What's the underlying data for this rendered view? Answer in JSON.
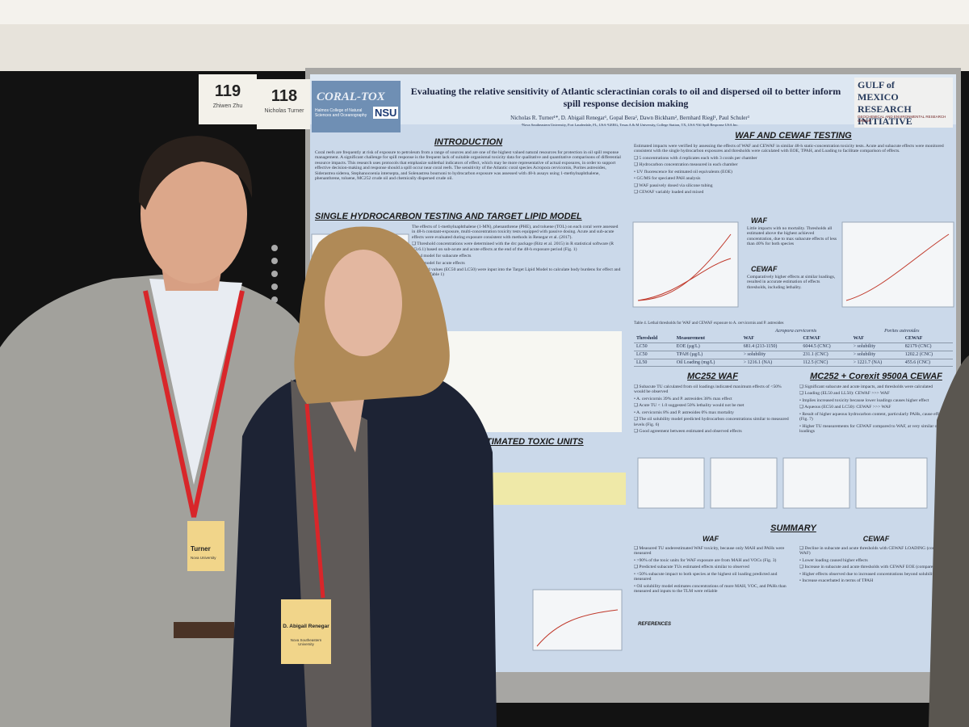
{
  "board_numbers": [
    {
      "number": "119",
      "name": "Zhiwen Zhu"
    },
    {
      "number": "118",
      "name": "Nicholas Turner"
    }
  ],
  "poster": {
    "title": "Evaluating the relative sensitivity of Atlantic scleractinian corals to oil and dispersed oil to better inform spill response decision making",
    "authors": "Nicholas R. Turner¹*, D. Abigail Renegar¹, Gopal Bera², Dawn Bickham², Bernhard Riegl¹, Paul Schuler³",
    "affiliations": "¹Nova Southeastern University, Fort Lauderdale, FL, USA   ²GERG, Texas A & M University, College Station, TX, USA   ³Oil Spill Response USA Inc.",
    "logo_left": "CORAL-TOX",
    "logo_left_sub": "NSU",
    "logo_left_caption": "Halmos College of Natural Sciences and Oceanography",
    "logo_right": "GULF of MEXICO RESEARCH INITIATIVE",
    "logo_right_sub": "GEOCHEMICAL AND ENVIRONMENTAL RESEARCH GROUP",
    "sections": [
      {
        "heading": "INTRODUCTION",
        "lines": [
          "Coral reefs are frequently at risk of exposure to petroleum from a range of sources and are one of the highest valued natural resources for protection in oil spill response management. A significant challenge for spill response is the frequent lack of suitable organismal toxicity data for qualitative and quantitative comparisons of differential resource impacts. This research uses protocols that emphasize sublethal indicators of effect, which may be more representative of actual exposures, in order to support effective decision-making and response should a spill occur near coral reefs. The sensitivity of the Atlantic coral species Acropora cervicornis, Porites astreoides, Siderastrea siderea, Stephanocoenia intersepta, and Solenastrea bournoni to hydrocarbon exposure was assessed with 48-h assays using 1-methylnaphthalene, phenanthrene, toluene, MC252 crude oil and chemically dispersed crude oil."
        ]
      },
      {
        "heading": "SINGLE HYDROCARBON TESTING AND TARGET LIPID MODEL",
        "lines": [
          "The effects of 1-methylnaphthalene (1-MN), phenanthrene (PHE), and toluene (TOL) on each coral were assessed in 48-h constant-exposure, multi-concentration toxicity tests equipped with passive dosing. Acute and sub-acute effects were evaluated during exposure consistent with methods in Renegar et al. (2017).",
          "❑ Threshold concentrations were determined with the drc package (Ritz et al. 2015) in R statistical software (R V3.6.1) based on sub-acute and acute effects at the end of the 48-h exposure period (Fig. 1)",
          "• LL4 model for subacute effects",
          "• LL2 model for acute effects",
          "Threshold values (EC50 and LC50) were input into the Target Lipid Model to calculate body burdens for effect and lethality (Table 1)"
        ]
      },
      {
        "heading": "WAF AND CEWAF TESTING",
        "lines": [
          "Estimated impacts were verified by assessing the effects of WAF and CEWAF in similar 48-h static-concentration toxicity tests. Acute and subacute effects were monitored consistent with the single hydrocarbon exposures and thresholds were calculated with EOE, TPAH, and Loading to facilitate comparison of effects.",
          "❑ 5 concentrations with 4 replicates each with 3 corals per chamber",
          "❑ Hydrocarbon concentration measured in each chamber",
          "• UV fluorescence for estimated oil equivalents (EOE)",
          "• GC/MS for speciated PAH analysis",
          "❑ WAF passively dosed via silicone tubing",
          "❑ CEWAF variably loaded and mixed"
        ]
      },
      {
        "heading": "MC252 WAF",
        "lines": [
          "❑ Subacute TU calculated from oil loadings indicated maximum effects of <50% would be observed",
          "• A. cervicornis 39% and P. astreoides 38% max effect",
          "❑ Acute TU < 1.0 suggested 50% lethality would not be met",
          "• A. cervicornis 8% and P. astreoides 0% max mortality",
          "❑ The oil solubility model predicted hydrocarbon concentrations similar to measured levels (Fig. 6)",
          "❑ Good agreement between estimated and observed effects"
        ]
      },
      {
        "heading": "MC252 + Corexit 9500A CEWAF",
        "lines": [
          "❑ Significant subacute and acute impacts, and thresholds were calculated",
          "❑ Loading (EL50 and LL50): CEWAF >>> WAF",
          "• Implies increased toxicity because lower loadings causes higher effect",
          "❑ Aqueous (EC50 and LC50): CEWAF >>> WAF",
          "• Result of higher aqueous hydrocarbon content, particularly PAHs, cause effects (Fig. 7)",
          "• Higher TU measurements for CEWAF compared to WAF, at very similar oil loadings"
        ]
      }
    ],
    "table": {
      "caption": "Table 4. Lethal thresholds for WAF and CEWAF exposure to A. cervicornis and P. astreoides",
      "species": [
        "Acropora cervicornis",
        "Porites astreoides"
      ],
      "header": [
        "Threshold",
        "Measurement",
        "WAF",
        "CEWAF",
        "WAF",
        "CEWAF"
      ],
      "rows": [
        [
          "LC50",
          "EOE (µg/L)",
          "681.4 (213-1150)",
          "6044.5 (CNC)",
          "> solubility",
          "82179 (CNC)"
        ],
        [
          "LC50",
          "TPAH (µg/L)",
          "> solubility",
          "231.1 (CNC)",
          "> solubility",
          "1202.2 (CNC)"
        ],
        [
          "LL50",
          "Oil Loading (mg/L)",
          "> 1216.1 (NA)",
          "112.5 (CNC)",
          "> 1221.7 (NA)",
          "455.6 (CNC)"
        ]
      ]
    },
    "figure_headings": [
      "WAF",
      "CEWAF"
    ],
    "figure_notes": [
      "Little impacts with no mortality. Thresholds all estimated above the highest achieved concentration, due to max subacute effects of less than 40% for both species",
      "Comparatively higher effects at similar loadings, resulted in accurate estimation of effects thresholds, including lethality."
    ],
    "toxic_units_heading": "ESTIMATED TOXIC UNITS",
    "summary": {
      "heading": "SUMMARY",
      "columns": [
        {
          "heading": "WAF",
          "lines": [
            "❑ Measured TU underestimated WAF toxicity, because only MAH and PAHs were measured",
            "• >90% of the toxic units for WAF exposure are from MAH and VOCs (Fig. 3)",
            "❑ Predicted subacute TUs estimated effects similar to observed",
            "• <50% subacute impact to both species at the highest oil loading predicted and measured",
            "• Oil solubility model estimates concentrations of more MAH, VOC, and PAHs than measured and inputs to the TLM were reliable"
          ]
        },
        {
          "heading": "CEWAF",
          "lines": [
            "❑ Decline in subacute and acute thresholds with CEWAF LOADING (compared to WAF)",
            "• Lower loading caused higher effects",
            "❑ Increase in subacute and acute thresholds with CEWAF EOE (compared to WAF)",
            "• Higher effects observed due to increased concentrations beyond solubility",
            "• Increase exacerbated in terms of TPAH"
          ]
        }
      ]
    },
    "references_heading": "REFERENCES"
  },
  "name_tags": [
    {
      "name": "Turner",
      "org": "Nova University"
    },
    {
      "name": "D. Abigail Renegar",
      "org": "Nova Southeastern University"
    }
  ]
}
